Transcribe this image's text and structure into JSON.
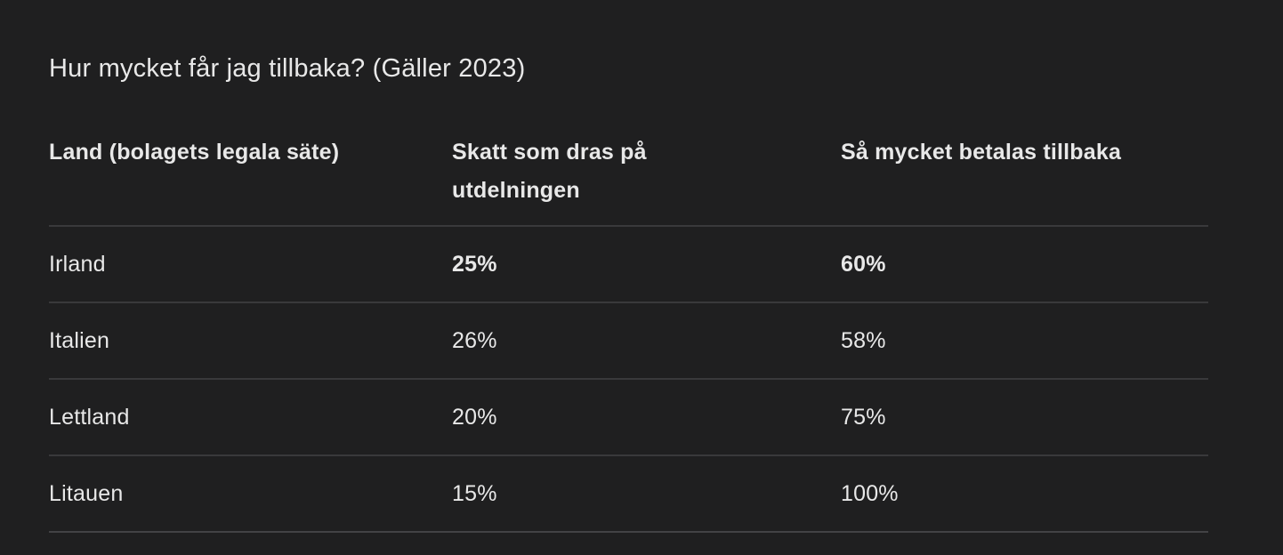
{
  "page": {
    "title": "Hur mycket får jag tillbaka? (Gäller 2023)"
  },
  "table": {
    "columns": [
      {
        "label": "Land (bolagets legala säte)"
      },
      {
        "label": "Skatt som dras på utdelningen"
      },
      {
        "label": "Så mycket betalas tillbaka"
      }
    ],
    "rows": [
      {
        "country": "Irland",
        "tax_withheld": "25%",
        "paid_back": "60%"
      },
      {
        "country": "Italien",
        "tax_withheld": "26%",
        "paid_back": "58%"
      },
      {
        "country": "Lettland",
        "tax_withheld": "20%",
        "paid_back": "75%"
      },
      {
        "country": "Litauen",
        "tax_withheld": "15%",
        "paid_back": "100%"
      }
    ]
  },
  "colors": {
    "background": "#1f1f20",
    "text": "#e8e8e8",
    "divider": "#39393b"
  }
}
